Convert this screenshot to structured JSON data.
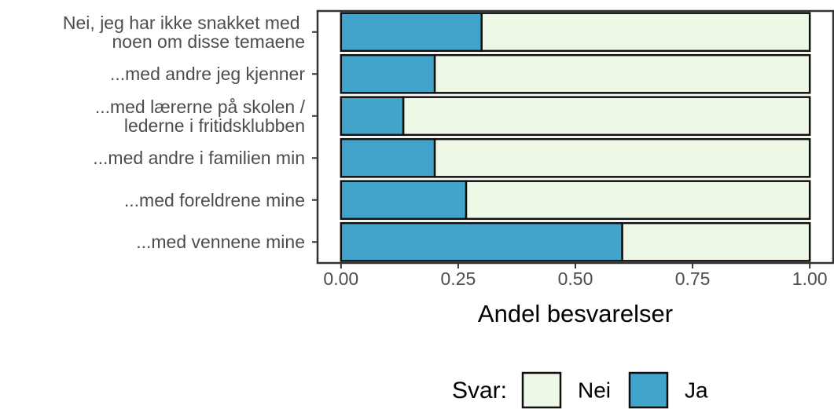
{
  "chart_data": {
    "type": "stacked_bar_horizontal",
    "x_label": "Andel besvarelser",
    "categories": [
      "Nei, jeg har ikke snakket med \nnoen om disse temaene",
      "...med andre jeg kjenner",
      "...med lærerne på skolen /\nlederne i fritidsklubben",
      "...med andre i familien min",
      "...med foreldrene mine",
      "...med vennene mine"
    ],
    "series": [
      {
        "name": "Nei",
        "color": "#eef8e7",
        "values": [
          0.7,
          0.8,
          0.867,
          0.8,
          0.733,
          0.4
        ]
      },
      {
        "name": "Ja",
        "color": "#43a4cb",
        "values": [
          0.3,
          0.2,
          0.133,
          0.2,
          0.267,
          0.6
        ]
      }
    ],
    "legend_title": "Svar:",
    "legend_position": "bottom",
    "xlim": [
      -0.05,
      1.05
    ],
    "xticks": [
      {
        "value": 0,
        "label": "0.00"
      },
      {
        "value": 0.25,
        "label": "0.25"
      },
      {
        "value": 0.5,
        "label": "0.50"
      },
      {
        "value": 0.75,
        "label": "0.75"
      },
      {
        "value": 1,
        "label": "1.00"
      }
    ]
  }
}
